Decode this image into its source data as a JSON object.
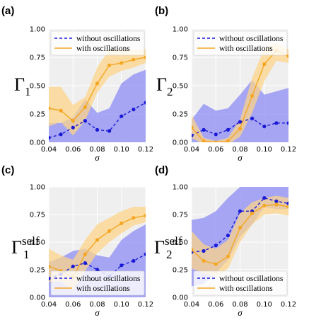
{
  "colors": {
    "without": "#1a1ad6",
    "without_band": "#8c8cf5",
    "with": "#f5a623",
    "with_band": "#fcd48a",
    "panel_bg": "#efefef",
    "grid": "#ffffff"
  },
  "chart_data": [
    {
      "type": "line",
      "panel_label": "(a)",
      "ylabel": "Γ",
      "ylabel_sub": "1",
      "ylabel_sup": "",
      "xlabel": "σ",
      "xlim": [
        0.04,
        0.12
      ],
      "ylim": [
        0,
        1
      ],
      "xticks": [
        "0.04",
        "0.06",
        "0.08",
        "0.10",
        "0.12"
      ],
      "yticks": [
        "0.00",
        "0.25",
        "0.50",
        "0.75",
        "1.00"
      ],
      "legend_position": "top",
      "x": [
        0.04,
        0.05,
        0.06,
        0.07,
        0.08,
        0.09,
        0.1,
        0.11,
        0.12
      ],
      "series": [
        {
          "name": "without oscillations",
          "style": "dashed",
          "values": [
            0.04,
            0.07,
            0.13,
            0.19,
            0.11,
            0.1,
            0.23,
            0.29,
            0.35
          ],
          "lower": [
            -0.02,
            -0.01,
            -0.02,
            -0.02,
            -0.02,
            -0.02,
            -0.02,
            -0.02,
            -0.02
          ],
          "upper": [
            0.17,
            0.17,
            0.22,
            0.38,
            0.26,
            0.3,
            0.52,
            0.6,
            0.64
          ]
        },
        {
          "name": "with oscillations",
          "style": "solid",
          "values": [
            0.3,
            0.28,
            0.19,
            0.31,
            0.52,
            0.68,
            0.7,
            0.73,
            0.75
          ],
          "lower": [
            0.14,
            0.18,
            0.06,
            0.19,
            0.44,
            0.58,
            0.63,
            0.66,
            0.7
          ],
          "upper": [
            0.49,
            0.49,
            0.33,
            0.4,
            0.66,
            0.82,
            0.82,
            0.81,
            0.82
          ]
        }
      ]
    },
    {
      "type": "line",
      "panel_label": "(b)",
      "ylabel": "Γ",
      "ylabel_sub": "2",
      "ylabel_sup": "",
      "xlabel": "σ",
      "xlim": [
        0.04,
        0.12
      ],
      "ylim": [
        0,
        1
      ],
      "xticks": [
        "0.04",
        "0.06",
        "0.08",
        "0.10",
        "0.12"
      ],
      "yticks": [
        "0.00",
        "0.25",
        "0.50",
        "0.75",
        "1.00"
      ],
      "legend_position": "top",
      "x": [
        0.04,
        0.05,
        0.06,
        0.07,
        0.08,
        0.09,
        0.1,
        0.11,
        0.12
      ],
      "series": [
        {
          "name": "without oscillations",
          "style": "dashed",
          "values": [
            0.06,
            0.11,
            0.07,
            0.11,
            0.18,
            0.21,
            0.14,
            0.17,
            0.17
          ],
          "lower": [
            -0.02,
            -0.02,
            -0.02,
            -0.02,
            -0.02,
            -0.02,
            -0.02,
            -0.02,
            -0.02
          ],
          "upper": [
            0.2,
            0.34,
            0.28,
            0.3,
            0.42,
            0.55,
            0.42,
            0.45,
            0.48
          ]
        },
        {
          "name": "with oscillations",
          "style": "solid",
          "values": [
            0.13,
            0.01,
            0.0,
            0.01,
            0.12,
            0.41,
            0.69,
            0.81,
            0.76
          ],
          "lower": [
            0.04,
            -0.02,
            -0.02,
            -0.02,
            0.05,
            0.26,
            0.54,
            0.72,
            0.7
          ],
          "upper": [
            0.24,
            0.04,
            0.01,
            0.04,
            0.2,
            0.57,
            0.83,
            0.88,
            0.82
          ]
        }
      ]
    },
    {
      "type": "line",
      "panel_label": "(c)",
      "ylabel": "Γ",
      "ylabel_sub": "1",
      "ylabel_sup": "self",
      "xlabel": "σ",
      "xlim": [
        0.04,
        0.12
      ],
      "ylim": [
        0,
        1
      ],
      "xticks": [
        "0.04",
        "0.06",
        "0.08",
        "0.10",
        "0.12"
      ],
      "yticks": [
        "0.00",
        "0.25",
        "0.50",
        "0.75",
        "1.00"
      ],
      "legend_position": "bottom",
      "x": [
        0.04,
        0.05,
        0.06,
        0.07,
        0.08,
        0.09,
        0.1,
        0.11,
        0.12
      ],
      "series": [
        {
          "name": "without oscillations",
          "style": "dashed",
          "values": [
            0.17,
            0.21,
            0.28,
            0.31,
            0.25,
            0.19,
            0.29,
            0.33,
            0.39
          ],
          "lower": [
            -0.02,
            -0.02,
            -0.02,
            -0.02,
            -0.02,
            -0.02,
            -0.02,
            -0.02,
            -0.02
          ],
          "upper": [
            0.32,
            0.36,
            0.42,
            0.44,
            0.38,
            0.36,
            0.52,
            0.6,
            0.66
          ]
        },
        {
          "name": "with oscillations",
          "style": "solid",
          "values": [
            0.28,
            0.24,
            0.18,
            0.39,
            0.52,
            0.6,
            0.67,
            0.72,
            0.74
          ],
          "lower": [
            0.14,
            0.14,
            0.06,
            0.24,
            0.4,
            0.5,
            0.58,
            0.65,
            0.68
          ],
          "upper": [
            0.44,
            0.38,
            0.34,
            0.52,
            0.66,
            0.72,
            0.78,
            0.82,
            0.82
          ]
        }
      ]
    },
    {
      "type": "line",
      "panel_label": "(d)",
      "ylabel": "Γ",
      "ylabel_sub": "2",
      "ylabel_sup": "self",
      "xlabel": "σ",
      "xlim": [
        0.04,
        0.12
      ],
      "ylim": [
        0,
        1
      ],
      "xticks": [
        "0.04",
        "0.06",
        "0.08",
        "0.10",
        "0.12"
      ],
      "yticks": [
        "0.00",
        "0.25",
        "0.50",
        "0.75",
        "1.00"
      ],
      "legend_position": "bottom",
      "x": [
        0.04,
        0.05,
        0.06,
        0.07,
        0.08,
        0.09,
        0.1,
        0.11,
        0.12
      ],
      "series": [
        {
          "name": "without oscillations",
          "style": "dashed",
          "values": [
            0.41,
            0.42,
            0.47,
            0.56,
            0.78,
            0.78,
            0.9,
            0.87,
            0.85
          ],
          "lower": [
            0.1,
            0.12,
            0.22,
            0.34,
            0.55,
            0.66,
            0.82,
            0.8,
            0.8
          ],
          "upper": [
            0.7,
            0.72,
            0.78,
            0.9,
            1.0,
            1.0,
            1.0,
            1.0,
            1.0
          ]
        },
        {
          "name": "with oscillations",
          "style": "solid",
          "values": [
            0.43,
            0.33,
            0.3,
            0.37,
            0.63,
            0.76,
            0.83,
            0.84,
            0.82
          ],
          "lower": [
            0.26,
            0.22,
            0.18,
            0.26,
            0.5,
            0.66,
            0.75,
            0.76,
            0.74
          ],
          "upper": [
            0.6,
            0.48,
            0.44,
            0.52,
            0.76,
            0.86,
            0.9,
            0.92,
            0.9
          ]
        }
      ]
    }
  ]
}
